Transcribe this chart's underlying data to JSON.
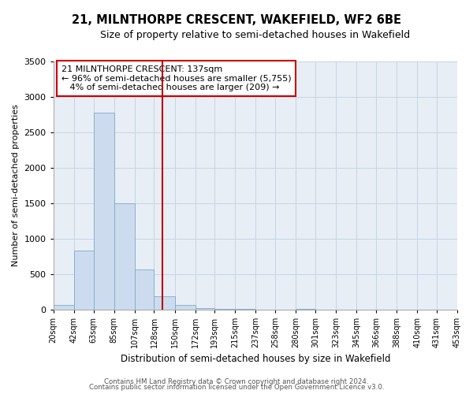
{
  "title": "21, MILNTHORPE CRESCENT, WAKEFIELD, WF2 6BE",
  "subtitle": "Size of property relative to semi-detached houses in Wakefield",
  "xlabel": "Distribution of semi-detached houses by size in Wakefield",
  "ylabel": "Number of semi-detached properties",
  "bin_edges": [
    20,
    42,
    63,
    85,
    107,
    128,
    150,
    172,
    193,
    215,
    237,
    258,
    280,
    301,
    323,
    345,
    366,
    388,
    410,
    431,
    453
  ],
  "bin_counts": [
    65,
    830,
    2780,
    1500,
    560,
    185,
    60,
    25,
    5,
    5,
    0,
    0,
    5,
    0,
    0,
    0,
    0,
    0,
    0,
    0
  ],
  "bar_color": "#ccdcee",
  "bar_edgecolor": "#7aaacb",
  "property_size": 137,
  "vline_color": "#bb0000",
  "ylim": [
    0,
    3500
  ],
  "yticks": [
    0,
    500,
    1000,
    1500,
    2000,
    2500,
    3000,
    3500
  ],
  "annotation_box_text": "21 MILNTHORPE CRESCENT: 137sqm\n← 96% of semi-detached houses are smaller (5,755)\n   4% of semi-detached houses are larger (209) →",
  "annotation_box_edgecolor": "#cc0000",
  "footer_line1": "Contains HM Land Registry data © Crown copyright and database right 2024.",
  "footer_line2": "Contains public sector information licensed under the Open Government Licence v3.0.",
  "background_color": "#ffffff",
  "plot_background": "#e8eef5",
  "grid_color": "#c5d4e3",
  "tick_labels": [
    "20sqm",
    "42sqm",
    "63sqm",
    "85sqm",
    "107sqm",
    "128sqm",
    "150sqm",
    "172sqm",
    "193sqm",
    "215sqm",
    "237sqm",
    "258sqm",
    "280sqm",
    "301sqm",
    "323sqm",
    "345sqm",
    "366sqm",
    "388sqm",
    "410sqm",
    "431sqm",
    "453sqm"
  ]
}
